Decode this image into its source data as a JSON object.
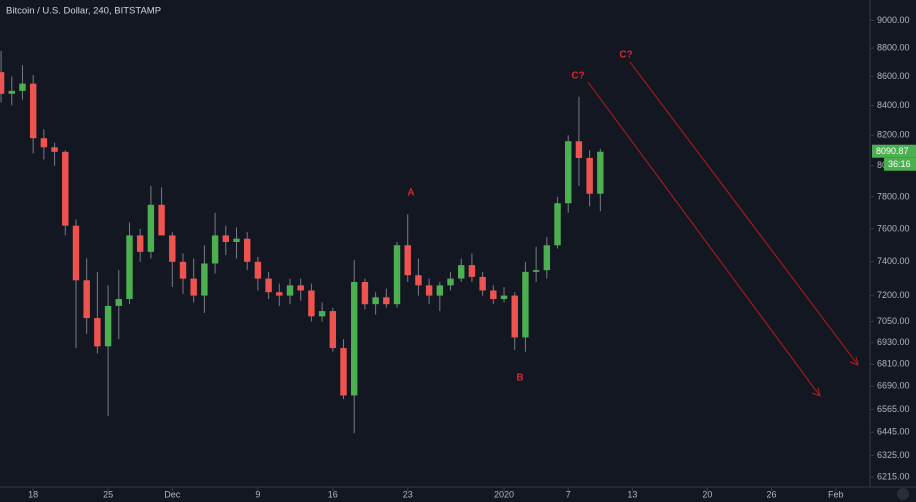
{
  "chart_data": {
    "type": "candlestick",
    "title": "Bitcoin / U.S. Dollar, 240, BITSTAMP",
    "countdown": "36:16",
    "log_scale": true,
    "up_color": "#4caf50",
    "down_color": "#ef5350",
    "x": [
      -3,
      -2,
      -1,
      0,
      1,
      2,
      3,
      4,
      5,
      6,
      7,
      8,
      9,
      10,
      11,
      12,
      13,
      14,
      15,
      16,
      17,
      18,
      19,
      20,
      21,
      22,
      23,
      24,
      25,
      26,
      27,
      28,
      29,
      30,
      31,
      32,
      33,
      34,
      35,
      36,
      37,
      38,
      39,
      40,
      41,
      42,
      43,
      44,
      45,
      46,
      47,
      48,
      49,
      50,
      51,
      52,
      53
    ],
    "open": [
      8630,
      8480,
      8500,
      8550,
      8180,
      8120,
      8090,
      7620,
      7290,
      7070,
      6910,
      7140,
      7180,
      7560,
      7460,
      7750,
      7560,
      7400,
      7300,
      7200,
      7390,
      7560,
      7520,
      7540,
      7400,
      7300,
      7220,
      7200,
      7260,
      7230,
      7080,
      7110,
      6900,
      6640,
      7280,
      7150,
      7190,
      7150,
      7500,
      7320,
      7260,
      7200,
      7260,
      7300,
      7380,
      7310,
      7230,
      7180,
      7200,
      6960,
      7340,
      7350,
      7500,
      7760,
      8160,
      8050,
      7820
    ],
    "high": [
      8780,
      8600,
      8680,
      8610,
      8240,
      8150,
      8100,
      7660,
      7420,
      7340,
      7260,
      7350,
      7640,
      7600,
      7870,
      7860,
      7580,
      7450,
      7420,
      7500,
      7700,
      7620,
      7610,
      7580,
      7430,
      7340,
      7270,
      7300,
      7300,
      7270,
      7160,
      7130,
      6950,
      7410,
      7300,
      7220,
      7240,
      7520,
      7690,
      7420,
      7300,
      7280,
      7340,
      7420,
      7450,
      7340,
      7260,
      7250,
      7220,
      7400,
      7490,
      7550,
      7800,
      8200,
      8460,
      8100,
      8110
    ],
    "low": [
      8420,
      8400,
      8440,
      8080,
      8040,
      8000,
      7560,
      6900,
      6980,
      6870,
      6530,
      6950,
      7150,
      7400,
      7420,
      7570,
      7250,
      7210,
      7160,
      7100,
      7330,
      7440,
      7420,
      7350,
      7230,
      7180,
      7140,
      7150,
      7170,
      7050,
      7050,
      6880,
      6620,
      6440,
      7120,
      7090,
      7130,
      7130,
      7280,
      7200,
      7150,
      7110,
      7230,
      7280,
      7280,
      7200,
      7150,
      7160,
      6890,
      6880,
      7280,
      7300,
      7480,
      7700,
      7870,
      7740,
      7710
    ],
    "close": [
      8480,
      8500,
      8550,
      8180,
      8120,
      8090,
      7620,
      7290,
      7070,
      6910,
      7140,
      7180,
      7560,
      7460,
      7750,
      7560,
      7400,
      7300,
      7200,
      7390,
      7560,
      7520,
      7540,
      7400,
      7300,
      7220,
      7200,
      7260,
      7230,
      7080,
      7110,
      6900,
      6640,
      7280,
      7150,
      7190,
      7150,
      7500,
      7320,
      7260,
      7200,
      7260,
      7300,
      7380,
      7310,
      7230,
      7180,
      7200,
      6960,
      7340,
      7350,
      7500,
      7760,
      8160,
      8050,
      7820,
      8090.87
    ],
    "xlim": [
      -3.1,
      78.2
    ],
    "xticks": [
      {
        "value": 0,
        "label": "18"
      },
      {
        "value": 7,
        "label": "25"
      },
      {
        "value": 13,
        "label": "Dec"
      },
      {
        "value": 21,
        "label": "9"
      },
      {
        "value": 28,
        "label": "16"
      },
      {
        "value": 35,
        "label": "23"
      },
      {
        "value": 44,
        "label": "2020"
      },
      {
        "value": 50,
        "label": "7"
      },
      {
        "value": 56,
        "label": "13"
      },
      {
        "value": 63,
        "label": "20"
      },
      {
        "value": 69,
        "label": "26"
      },
      {
        "value": 75,
        "label": "Feb"
      }
    ],
    "ylim": [
      6165,
      9150
    ],
    "yticks": [
      {
        "value": 9000,
        "label": "9000.00"
      },
      {
        "value": 8800,
        "label": "8800.00"
      },
      {
        "value": 8600,
        "label": "8600.00"
      },
      {
        "value": 8400,
        "label": "8400.00"
      },
      {
        "value": 8200,
        "label": "8200.00"
      },
      {
        "value": 8000,
        "label": "8000.00"
      },
      {
        "value": 7800,
        "label": "7800.00"
      },
      {
        "value": 7600,
        "label": "7600.00"
      },
      {
        "value": 7400,
        "label": "7400.00"
      },
      {
        "value": 7200,
        "label": "7200.00"
      },
      {
        "value": 7050,
        "label": "7050.00"
      },
      {
        "value": 6930,
        "label": "6930.00"
      },
      {
        "value": 6810,
        "label": "6810.00"
      },
      {
        "value": 6690,
        "label": "6690.00"
      },
      {
        "value": 6565,
        "label": "6565.00"
      },
      {
        "value": 6445,
        "label": "6445.00"
      },
      {
        "value": 6325,
        "label": "6325.00"
      },
      {
        "value": 6215,
        "label": "6215.00"
      }
    ],
    "annotations": [
      "A",
      "B",
      "C?",
      "C?"
    ]
  }
}
